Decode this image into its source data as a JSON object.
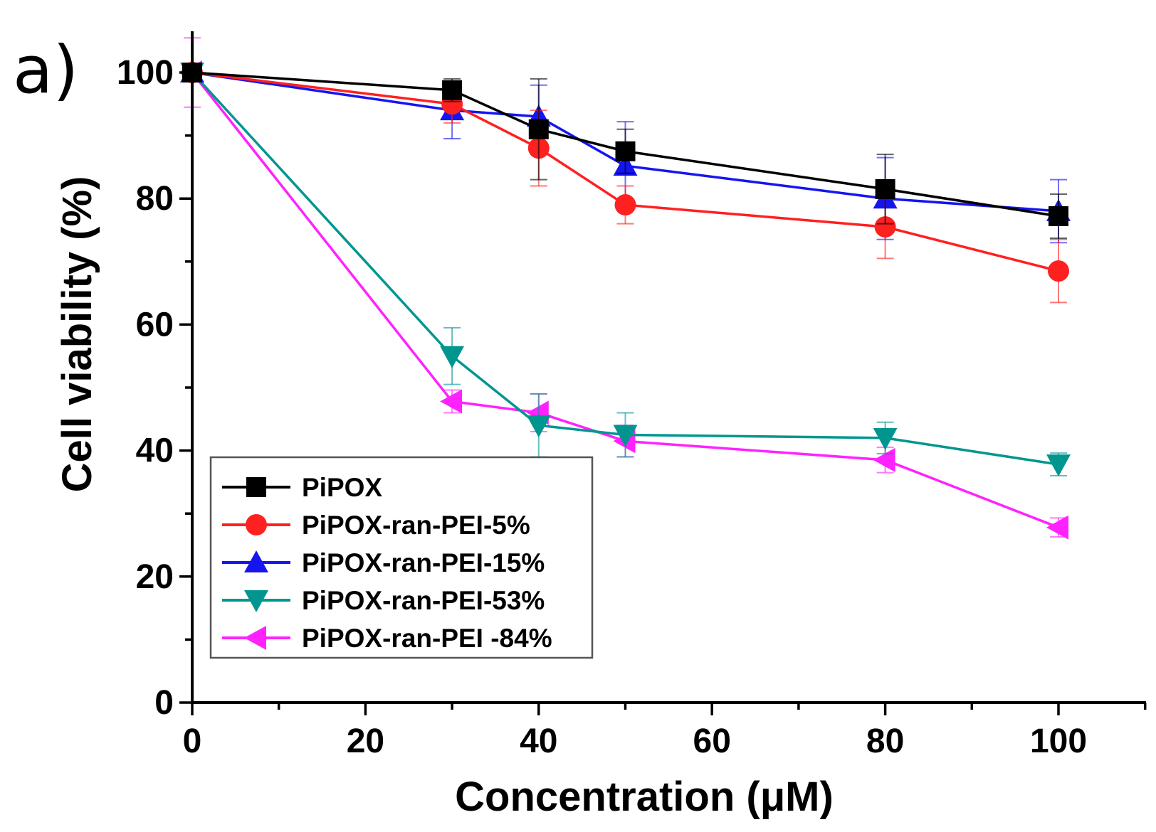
{
  "panel_label": "a)",
  "chart_data": {
    "type": "line",
    "title": "",
    "xlabel": "Concentration (μM)",
    "ylabel": "Cell viability (%)",
    "xlim": [
      0,
      110
    ],
    "ylim": [
      0,
      107
    ],
    "xticks": [
      0,
      20,
      40,
      60,
      80,
      100
    ],
    "yticks": [
      0,
      20,
      40,
      60,
      80,
      100
    ],
    "x": [
      0,
      30,
      40,
      50,
      80,
      100
    ],
    "legend_position": "lower-left",
    "series": [
      {
        "name": "PiPOX",
        "color": "#000000",
        "marker": "square",
        "values": [
          100,
          97.2,
          91,
          87.5,
          81.5,
          77.2
        ],
        "errors": [
          0,
          1.8,
          8,
          3.5,
          5.5,
          3.5
        ]
      },
      {
        "name": "PiPOX-ran-PEI-5%",
        "color": "#ff2020",
        "marker": "circle",
        "values": [
          100,
          95,
          88,
          79,
          75.5,
          68.5
        ],
        "errors": [
          0,
          3,
          6,
          3,
          5,
          5
        ]
      },
      {
        "name": "PiPOX-ran-PEI-15%",
        "color": "#1515f0",
        "marker": "triangle-up",
        "values": [
          100,
          94,
          93,
          85.2,
          80,
          78
        ],
        "errors": [
          0,
          4.5,
          5,
          7,
          6.5,
          5
        ]
      },
      {
        "name": "PiPOX-ran-PEI-53%",
        "color": "#00968f",
        "marker": "triangle-down",
        "values": [
          100,
          55,
          44,
          42.5,
          42,
          37.8
        ],
        "errors": [
          0,
          4.5,
          5,
          3.5,
          2.5,
          1.8
        ]
      },
      {
        "name": "PiPOX-ran-PEI -84%",
        "color": "#ff22ff",
        "marker": "triangle-left",
        "values": [
          100,
          47.8,
          46,
          41.5,
          38.5,
          27.8
        ],
        "errors": [
          5.5,
          1.8,
          3,
          2.5,
          2,
          1.5
        ]
      }
    ]
  }
}
